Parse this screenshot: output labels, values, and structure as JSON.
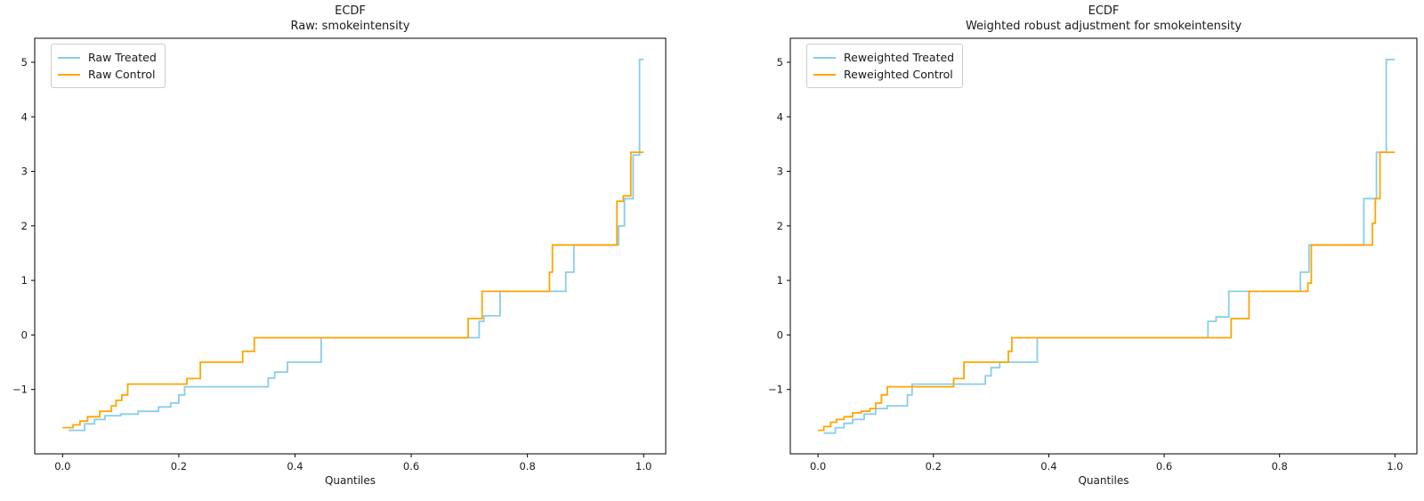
{
  "figure": {
    "background": "#ffffff",
    "axis_color": "#000000",
    "series_colors": {
      "treated": "#87CEEB",
      "control": "#FFA500"
    }
  },
  "chart_data": [
    {
      "type": "line",
      "step": true,
      "title_line1": "ECDF",
      "title_line2": "Raw: smokeintensity",
      "xlabel": "Quantiles",
      "legend_loc": "upper left",
      "xlim": [
        -0.048,
        1.038
      ],
      "ylim": [
        -2.18,
        5.44
      ],
      "x_end": 1.0,
      "xticks": {
        "values": [
          0.0,
          0.2,
          0.4,
          0.6,
          0.8,
          1.0
        ],
        "labels": [
          "0.0",
          "0.2",
          "0.4",
          "0.6",
          "0.8",
          "1.0"
        ]
      },
      "yticks": {
        "values": [
          5,
          4,
          3,
          2,
          1,
          0,
          -1
        ],
        "labels": [
          "5",
          "4",
          "3",
          "2",
          "1",
          "0",
          "−1"
        ]
      },
      "grid": false,
      "series": [
        {
          "name": "Raw Treated",
          "color": "#87CEEB",
          "points": [
            [
              0.01,
              -1.75
            ],
            [
              0.038,
              -1.63
            ],
            [
              0.055,
              -1.55
            ],
            [
              0.073,
              -1.48
            ],
            [
              0.1,
              -1.45
            ],
            [
              0.13,
              -1.4
            ],
            [
              0.165,
              -1.32
            ],
            [
              0.186,
              -1.25
            ],
            [
              0.2,
              -1.1
            ],
            [
              0.21,
              -0.95
            ],
            [
              0.354,
              -0.79
            ],
            [
              0.365,
              -0.68
            ],
            [
              0.387,
              -0.5
            ],
            [
              0.445,
              -0.05
            ],
            [
              0.717,
              0.25
            ],
            [
              0.725,
              0.35
            ],
            [
              0.753,
              0.8
            ],
            [
              0.866,
              1.15
            ],
            [
              0.88,
              1.65
            ],
            [
              0.957,
              2.0
            ],
            [
              0.967,
              2.5
            ],
            [
              0.982,
              3.3
            ],
            [
              0.993,
              5.05
            ]
          ]
        },
        {
          "name": "Raw Control",
          "color": "#FFA500",
          "points": [
            [
              0.0,
              -1.7
            ],
            [
              0.018,
              -1.65
            ],
            [
              0.03,
              -1.58
            ],
            [
              0.043,
              -1.5
            ],
            [
              0.064,
              -1.4
            ],
            [
              0.084,
              -1.3
            ],
            [
              0.092,
              -1.2
            ],
            [
              0.102,
              -1.1
            ],
            [
              0.112,
              -0.9
            ],
            [
              0.214,
              -0.8
            ],
            [
              0.237,
              -0.5
            ],
            [
              0.31,
              -0.3
            ],
            [
              0.33,
              -0.05
            ],
            [
              0.698,
              0.3
            ],
            [
              0.722,
              0.8
            ],
            [
              0.838,
              1.15
            ],
            [
              0.843,
              1.65
            ],
            [
              0.954,
              2.45
            ],
            [
              0.965,
              2.55
            ],
            [
              0.978,
              3.35
            ]
          ]
        }
      ]
    },
    {
      "type": "line",
      "step": true,
      "title_line1": "ECDF",
      "title_line2": "Weighted robust adjustment for smokeintensity",
      "xlabel": "Quantiles",
      "legend_loc": "upper left",
      "xlim": [
        -0.048,
        1.038
      ],
      "ylim": [
        -2.18,
        5.44
      ],
      "x_end": 1.0,
      "xticks": {
        "values": [
          0.0,
          0.2,
          0.4,
          0.6,
          0.8,
          1.0
        ],
        "labels": [
          "0.0",
          "0.2",
          "0.4",
          "0.6",
          "0.8",
          "1.0"
        ]
      },
      "yticks": {
        "values": [
          5,
          4,
          3,
          2,
          1,
          0,
          -1
        ],
        "labels": [
          "5",
          "4",
          "3",
          "2",
          "1",
          "0",
          "−1"
        ]
      },
      "grid": false,
      "series": [
        {
          "name": "Reweighted Treated",
          "color": "#87CEEB",
          "points": [
            [
              0.01,
              -1.8
            ],
            [
              0.03,
              -1.7
            ],
            [
              0.045,
              -1.62
            ],
            [
              0.06,
              -1.55
            ],
            [
              0.08,
              -1.45
            ],
            [
              0.1,
              -1.35
            ],
            [
              0.12,
              -1.3
            ],
            [
              0.155,
              -1.1
            ],
            [
              0.163,
              -0.9
            ],
            [
              0.29,
              -0.75
            ],
            [
              0.3,
              -0.6
            ],
            [
              0.315,
              -0.5
            ],
            [
              0.38,
              -0.05
            ],
            [
              0.676,
              0.25
            ],
            [
              0.69,
              0.33
            ],
            [
              0.712,
              0.8
            ],
            [
              0.836,
              1.15
            ],
            [
              0.851,
              1.65
            ],
            [
              0.946,
              2.5
            ],
            [
              0.968,
              3.35
            ],
            [
              0.985,
              5.05
            ]
          ]
        },
        {
          "name": "Reweighted Control",
          "color": "#FFA500",
          "points": [
            [
              0.0,
              -1.75
            ],
            [
              0.01,
              -1.68
            ],
            [
              0.022,
              -1.6
            ],
            [
              0.032,
              -1.55
            ],
            [
              0.045,
              -1.5
            ],
            [
              0.06,
              -1.43
            ],
            [
              0.075,
              -1.4
            ],
            [
              0.09,
              -1.35
            ],
            [
              0.1,
              -1.25
            ],
            [
              0.11,
              -1.1
            ],
            [
              0.12,
              -0.95
            ],
            [
              0.235,
              -0.8
            ],
            [
              0.253,
              -0.5
            ],
            [
              0.33,
              -0.3
            ],
            [
              0.336,
              -0.05
            ],
            [
              0.716,
              0.3
            ],
            [
              0.747,
              0.8
            ],
            [
              0.849,
              0.95
            ],
            [
              0.855,
              1.65
            ],
            [
              0.961,
              2.05
            ],
            [
              0.966,
              2.5
            ],
            [
              0.974,
              3.35
            ]
          ]
        }
      ]
    }
  ]
}
